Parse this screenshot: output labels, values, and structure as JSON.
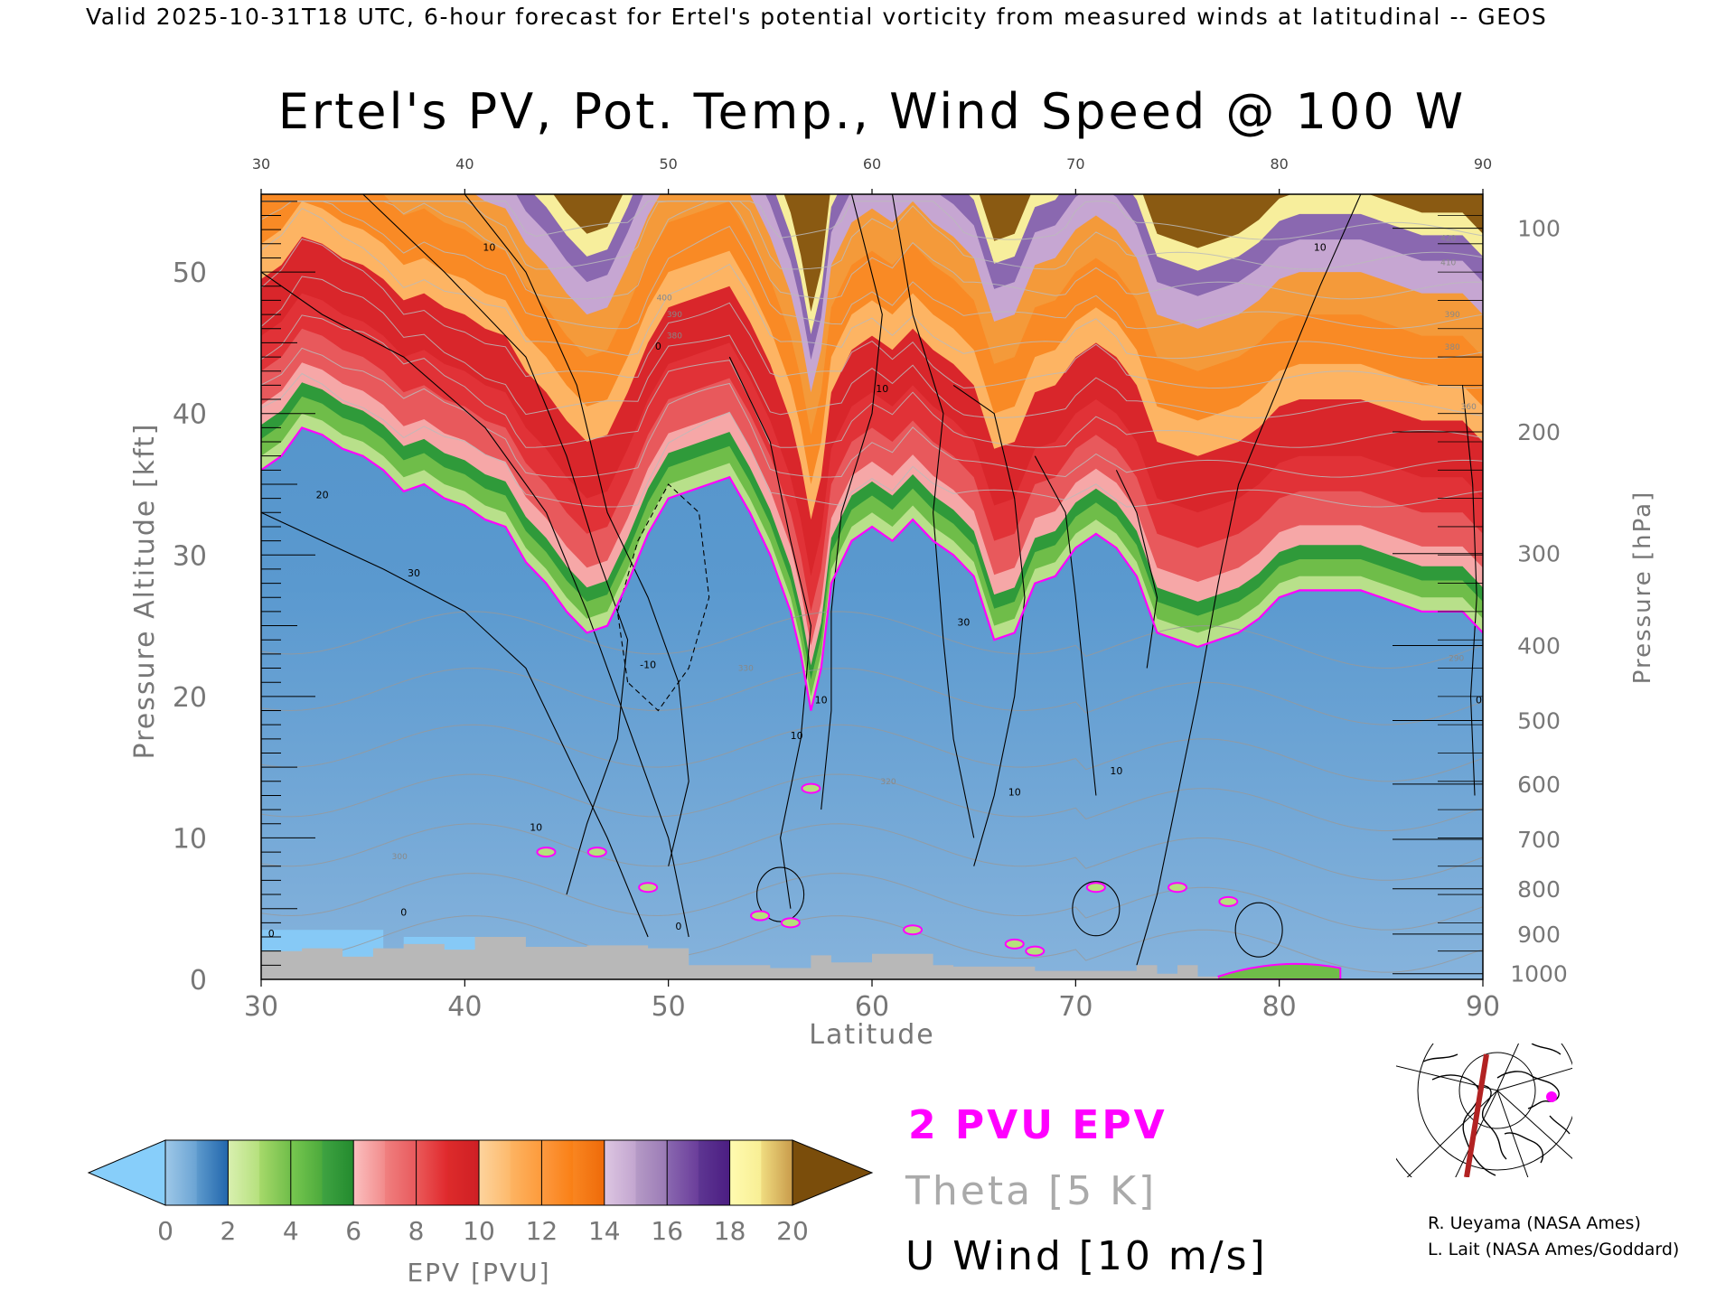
{
  "header": "Valid 2025-10-31T18 UTC, 6-hour forecast for Ertel's potential vorticity from measured winds at latitudinal -- GEOS",
  "chart_data": {
    "type": "heatmap",
    "title": "Ertel's PV, Pot. Temp., Wind Speed @ 100 W",
    "xlabel": "Latitude",
    "ylabel": "Pressure Altitude [kft]",
    "ylabel_right": "Pressure [hPa]",
    "xlim": [
      30,
      90
    ],
    "ylim": [
      0,
      55.5
    ],
    "x_ticks": [
      30,
      40,
      50,
      60,
      70,
      80,
      90
    ],
    "x_tick_labels": [
      "30",
      "40",
      "50",
      "60",
      "70",
      "80",
      "90"
    ],
    "y_ticks": [
      0,
      10,
      20,
      30,
      40,
      50
    ],
    "y_tick_labels": [
      "0",
      "10",
      "20",
      "30",
      "40",
      "50"
    ],
    "pressure_ticks": [
      {
        "hpa": 100,
        "label": "100",
        "kft": 53.1
      },
      {
        "hpa": 200,
        "label": "200",
        "kft": 38.7
      },
      {
        "hpa": 300,
        "label": "300",
        "kft": 30.1
      },
      {
        "hpa": 400,
        "label": "400",
        "kft": 23.6
      },
      {
        "hpa": 500,
        "label": "500",
        "kft": 18.3
      },
      {
        "hpa": 600,
        "label": "600",
        "kft": 13.8
      },
      {
        "hpa": 700,
        "label": "700",
        "kft": 9.9
      },
      {
        "hpa": 800,
        "label": "800",
        "kft": 6.4
      },
      {
        "hpa": 900,
        "label": "900",
        "kft": 3.2
      },
      {
        "hpa": 1000,
        "label": "1000",
        "kft": 0.4
      }
    ],
    "epv_colorbar": {
      "label": "EPV [PVU]",
      "ticks": [
        "0",
        "2",
        "4",
        "6",
        "8",
        "10",
        "12",
        "14",
        "16",
        "18",
        "20"
      ],
      "under_color": "#87cefa",
      "over_color": "#7a4d0b",
      "bins": [
        {
          "from": 0,
          "to": 1,
          "c1": "#9ec8e8",
          "c2": "#6aa3d3"
        },
        {
          "from": 1,
          "to": 2,
          "c1": "#5d9acd",
          "c2": "#2166ac"
        },
        {
          "from": 2,
          "to": 3,
          "c1": "#d9f0b0",
          "c2": "#b5e07c"
        },
        {
          "from": 3,
          "to": 4,
          "c1": "#a6d96a",
          "c2": "#6fbd49"
        },
        {
          "from": 4,
          "to": 5,
          "c1": "#78c850",
          "c2": "#4caa3c"
        },
        {
          "from": 5,
          "to": 6,
          "c1": "#3fa342",
          "c2": "#238b2e"
        },
        {
          "from": 6,
          "to": 7,
          "c1": "#fbc0c0",
          "c2": "#f28b8b"
        },
        {
          "from": 7,
          "to": 8,
          "c1": "#f08080",
          "c2": "#e8595c"
        },
        {
          "from": 8,
          "to": 9,
          "c1": "#ea5a5a",
          "c2": "#e0282c"
        },
        {
          "from": 9,
          "to": 10,
          "c1": "#dd2b2b",
          "c2": "#cf1f24"
        },
        {
          "from": 10,
          "to": 11,
          "c1": "#fdd49e",
          "c2": "#fdb96b"
        },
        {
          "from": 11,
          "to": 12,
          "c1": "#fdb463",
          "c2": "#fd9a3a"
        },
        {
          "from": 12,
          "to": 13,
          "c1": "#fd9940",
          "c2": "#f97f14"
        },
        {
          "from": 13,
          "to": 14,
          "c1": "#f98520",
          "c2": "#ee6a09"
        },
        {
          "from": 14,
          "to": 15,
          "c1": "#ddc6e2",
          "c2": "#c2a5cf"
        },
        {
          "from": 15,
          "to": 16,
          "c1": "#b59ac6",
          "c2": "#9a7ab5"
        },
        {
          "from": 16,
          "to": 17,
          "c1": "#8a68b0",
          "c2": "#6a3d9a"
        },
        {
          "from": 17,
          "to": 18,
          "c1": "#5e3692",
          "c2": "#4b1d82"
        },
        {
          "from": 18,
          "to": 19,
          "c1": "#fffbb0",
          "c2": "#f8ee94"
        },
        {
          "from": 19,
          "to": 20,
          "c1": "#f0dc80",
          "c2": "#c89a4a"
        }
      ]
    },
    "series": [
      {
        "name": "2 PVU EPV",
        "color": "#ff00ff",
        "x": [
          30,
          31,
          32,
          33,
          34,
          35,
          36,
          37,
          38,
          39,
          40,
          41,
          42,
          43,
          44,
          45,
          46,
          47,
          48,
          49,
          50,
          51,
          52,
          53,
          54,
          55,
          56,
          56.5,
          57,
          57.5,
          58,
          59,
          60,
          61,
          62,
          63,
          64,
          65,
          66,
          67,
          68,
          69,
          70,
          71,
          72,
          73,
          74,
          75,
          76,
          77,
          78,
          79,
          80,
          81,
          82,
          83,
          84,
          85,
          86,
          87,
          88,
          89,
          90
        ],
        "y": [
          36,
          37,
          39,
          38.5,
          37.5,
          37,
          36,
          34.5,
          35,
          34,
          33.5,
          32.5,
          32,
          29.5,
          28,
          26,
          24.5,
          25,
          28,
          31.5,
          34,
          34.5,
          35,
          35.5,
          33,
          30,
          26,
          23,
          19,
          22,
          28,
          31,
          32,
          31,
          32.5,
          31,
          30,
          28.5,
          24,
          24.5,
          28,
          28.5,
          30.5,
          31.5,
          30.5,
          28.5,
          24.5,
          24,
          23.5,
          24,
          24.5,
          25.5,
          27,
          27.5,
          27.5,
          27.5,
          27.5,
          27,
          26.5,
          26,
          26,
          26,
          24.5
        ]
      },
      {
        "name": "Theta [5 K]",
        "color": "#aaaaaa",
        "levels": [
          320,
          330,
          340,
          350,
          360,
          370,
          380,
          390,
          400,
          410,
          420
        ]
      },
      {
        "name": "U Wind [10 m/s]",
        "color": "#000000",
        "contour_labels": [
          "0",
          "10",
          "20",
          "30",
          "-10"
        ]
      }
    ],
    "inline_contour_labels": [
      {
        "text": "10",
        "x": 41.2,
        "y": 51.5
      },
      {
        "text": "0",
        "x": 49.5,
        "y": 44.5
      },
      {
        "text": "20",
        "x": 33,
        "y": 34
      },
      {
        "text": "30",
        "x": 37.5,
        "y": 28.5
      },
      {
        "text": "-10",
        "x": 49,
        "y": 22
      },
      {
        "text": "10",
        "x": 57.5,
        "y": 19.5
      },
      {
        "text": "10",
        "x": 56.3,
        "y": 17
      },
      {
        "text": "30",
        "x": 64.5,
        "y": 25
      },
      {
        "text": "10",
        "x": 60.5,
        "y": 41.5
      },
      {
        "text": "10",
        "x": 67,
        "y": 13
      },
      {
        "text": "10",
        "x": 72,
        "y": 14.5
      },
      {
        "text": "10",
        "x": 82,
        "y": 51.5
      },
      {
        "text": "10",
        "x": 43.5,
        "y": 10.5
      },
      {
        "text": "0",
        "x": 50.5,
        "y": 3.5
      },
      {
        "text": "0",
        "x": 37,
        "y": 4.5
      },
      {
        "text": "0",
        "x": 89.8,
        "y": 19.5
      },
      {
        "text": "0",
        "x": 30.5,
        "y": 3
      }
    ],
    "theta_inline_labels": [
      {
        "text": "400",
        "x": 49.8,
        "y": 48
      },
      {
        "text": "390",
        "x": 50.3,
        "y": 46.8
      },
      {
        "text": "380",
        "x": 50.3,
        "y": 45.3
      },
      {
        "text": "420",
        "x": 88.3,
        "y": 52.2
      },
      {
        "text": "410",
        "x": 88.3,
        "y": 50.5
      },
      {
        "text": "390",
        "x": 88.5,
        "y": 46.8
      },
      {
        "text": "380",
        "x": 88.5,
        "y": 44.5
      },
      {
        "text": "360",
        "x": 89.3,
        "y": 40.3
      },
      {
        "text": "330",
        "x": 53.8,
        "y": 21.8
      },
      {
        "text": "320",
        "x": 60.8,
        "y": 13.8
      },
      {
        "text": "300",
        "x": 36.8,
        "y": 8.5
      },
      {
        "text": "290",
        "x": 88.7,
        "y": 22.5
      }
    ]
  },
  "legend": {
    "epv_2pvu": "2 PVU EPV",
    "theta": "Theta [5 K]",
    "uwind": "U Wind [10 m/s]"
  },
  "credits": {
    "line1": "R. Ueyama (NASA Ames)",
    "line2": "L. Lait (NASA Ames/Goddard)"
  },
  "inset_map": {
    "cross_section_color": "#b22222",
    "marker_color": "#ff00ff"
  }
}
